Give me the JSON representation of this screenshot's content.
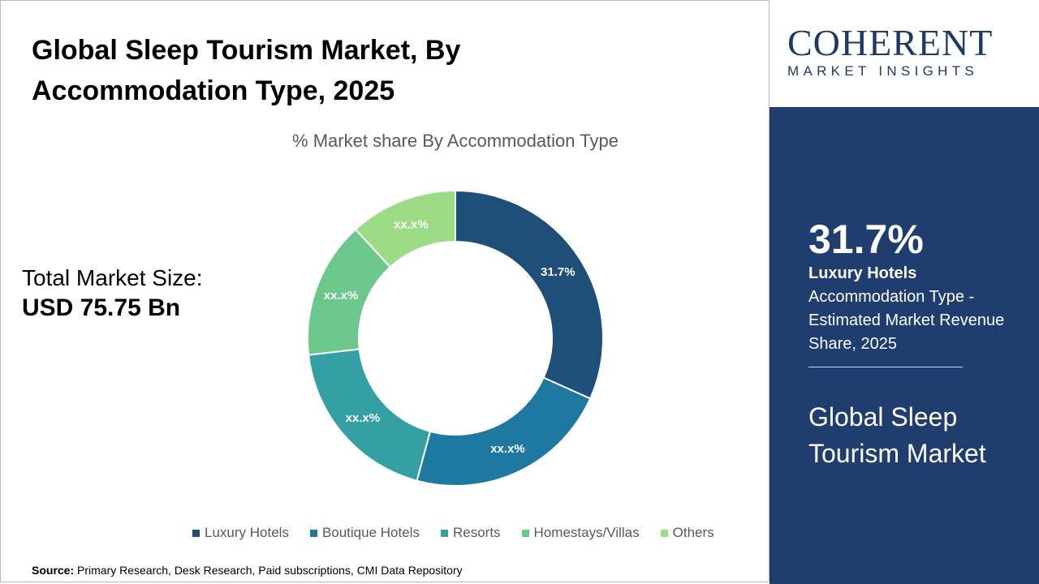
{
  "header": {
    "title": "Global Sleep Tourism Market, By Accommodation Type, 2025"
  },
  "logo": {
    "name": "COHERENT",
    "tagline": "MARKET INSIGHTS"
  },
  "total_market": {
    "label": "Total Market Size:",
    "value": "USD 75.75 Bn"
  },
  "chart_data": {
    "type": "pie",
    "subtitle": "% Market share By Accommodation Type",
    "categories": [
      "Luxury Hotels",
      "Boutique Hotels",
      "Resorts",
      "Homestays/Villas",
      "Others"
    ],
    "values": [
      31.7,
      22.5,
      19.0,
      15.0,
      11.8
    ],
    "labels": [
      "31.7%",
      "xx.x%",
      "xx.x%",
      "xx.x%",
      "xx.x%"
    ],
    "colors": [
      "#1f4e79",
      "#1f78a0",
      "#35a0a4",
      "#6cc78d",
      "#9ddc86"
    ],
    "legend_position": "bottom",
    "donut": true
  },
  "side_panel": {
    "stat_value": "31.7%",
    "stat_name": "Luxury Hotels",
    "stat_desc": "Accommodation Type - Estimated Market Revenue Share, 2025",
    "market_name": "Global Sleep Tourism Market"
  },
  "footer": {
    "source_label": "Source:",
    "source_text": "Primary Research, Desk Research, Paid subscriptions, CMI Data Repository"
  }
}
